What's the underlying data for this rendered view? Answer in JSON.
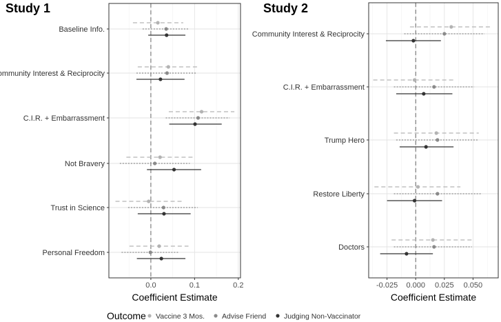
{
  "colors": {
    "Vaccine 3 Mos.": "#b3b3b3",
    "Advise Friend": "#8a8a8a",
    "Judging Non-Vaccinator": "#333333"
  },
  "legend": {
    "title": "Outcome",
    "items": [
      "Vaccine 3 Mos.",
      "Advise Friend",
      "Judging Non-Vaccinator"
    ]
  },
  "chart_data": [
    {
      "type": "coefficient-plot",
      "title": "Study 1",
      "xlabel": "Coefficient Estimate",
      "xlim": [
        -0.096,
        0.205
      ],
      "xticks": [
        0.0,
        0.1,
        0.2
      ],
      "xtick_labels": [
        "0.0",
        "0.1",
        "0.2"
      ],
      "minor_ticks": [
        -0.05,
        0.05,
        0.15
      ],
      "reference_line": 0,
      "categories": [
        "Baseline Info.",
        "Community Interest & Reciprocity",
        "C.I.R. + Embarrassment",
        "Not Bravery",
        "Trust in Science",
        "Personal Freedom"
      ],
      "series": [
        {
          "name": "Vaccine 3 Mos.",
          "estimates": [
            0.016,
            0.04,
            0.116,
            0.021,
            -0.005,
            0.019
          ],
          "lower": [
            -0.041,
            -0.03,
            0.041,
            -0.056,
            -0.081,
            -0.049
          ],
          "upper": [
            0.074,
            0.109,
            0.191,
            0.098,
            0.072,
            0.086
          ]
        },
        {
          "name": "Advise Friend",
          "estimates": [
            0.035,
            0.037,
            0.108,
            0.009,
            0.029,
            -0.001
          ],
          "lower": [
            -0.019,
            -0.033,
            0.034,
            -0.071,
            -0.052,
            -0.067
          ],
          "upper": [
            0.088,
            0.105,
            0.18,
            0.089,
            0.107,
            0.065
          ]
        },
        {
          "name": "Judging Non-Vaccinator",
          "estimates": [
            0.036,
            0.022,
            0.101,
            0.053,
            0.03,
            0.024
          ],
          "lower": [
            -0.006,
            -0.033,
            0.042,
            -0.009,
            -0.03,
            -0.032
          ],
          "upper": [
            0.079,
            0.077,
            0.162,
            0.115,
            0.091,
            0.079
          ]
        }
      ]
    },
    {
      "type": "coefficient-plot",
      "title": "Study 2",
      "xlabel": "Coefficient Estimate",
      "xlim": [
        -0.041,
        0.072
      ],
      "xticks": [
        -0.025,
        0.0,
        0.025,
        0.05
      ],
      "xtick_labels": [
        "-0.025",
        "0.000",
        "0.025",
        "0.050"
      ],
      "minor_ticks": [
        -0.0375,
        -0.0125,
        0.0125,
        0.0375,
        0.0625
      ],
      "reference_line": 0,
      "categories": [
        "Community Interest & Reciprocity",
        "C.I.R. + Embarrassment",
        "Trump Hero",
        "Restore Liberty",
        "Doctors"
      ],
      "series": [
        {
          "name": "Vaccine 3 Mos.",
          "estimates": [
            0.031,
            -0.001,
            0.018,
            0.002,
            0.015
          ],
          "lower": [
            -0.005,
            -0.037,
            -0.019,
            -0.036,
            -0.021
          ],
          "upper": [
            0.067,
            0.034,
            0.055,
            0.039,
            0.05
          ]
        },
        {
          "name": "Advise Friend",
          "estimates": [
            0.025,
            0.016,
            0.019,
            0.019,
            0.016
          ],
          "lower": [
            -0.01,
            -0.019,
            -0.017,
            -0.019,
            -0.019
          ],
          "upper": [
            0.06,
            0.051,
            0.055,
            0.057,
            0.049
          ]
        },
        {
          "name": "Judging Non-Vaccinator",
          "estimates": [
            -0.002,
            0.007,
            0.009,
            -0.001,
            -0.008
          ],
          "lower": [
            -0.026,
            -0.017,
            -0.014,
            -0.025,
            -0.031
          ],
          "upper": [
            0.022,
            0.032,
            0.033,
            0.023,
            0.015
          ]
        }
      ]
    }
  ]
}
